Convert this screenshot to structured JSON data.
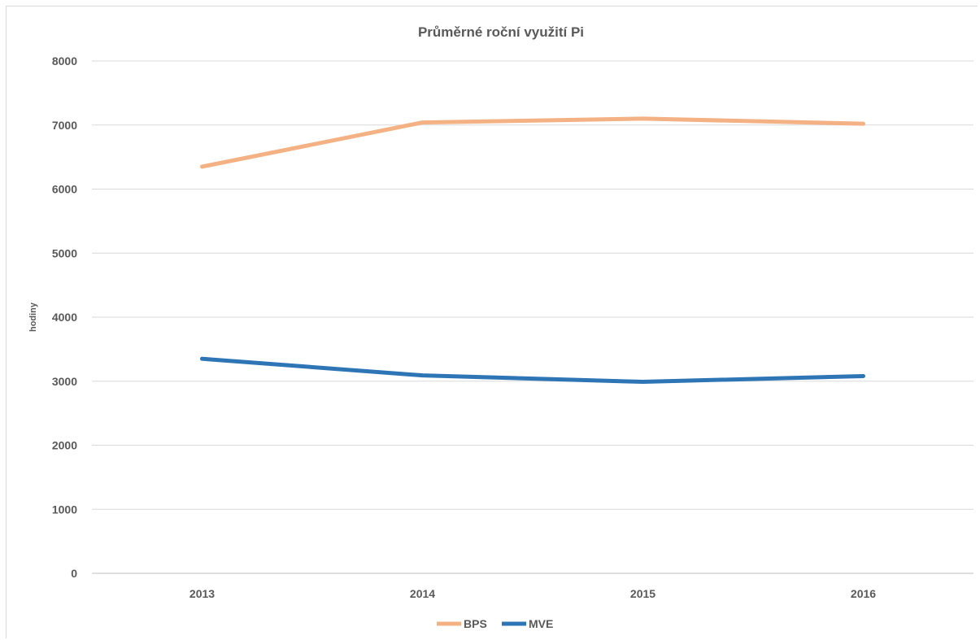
{
  "chart_data": {
    "type": "line",
    "title": "Průměrné roční využití Pi",
    "xlabel": "",
    "ylabel": "hodiny",
    "categories": [
      "2013",
      "2014",
      "2015",
      "2016"
    ],
    "ylim": [
      0,
      8000
    ],
    "yticks": [
      0,
      1000,
      2000,
      3000,
      4000,
      5000,
      6000,
      7000,
      8000
    ],
    "grid": true,
    "legend_position": "bottom",
    "series": [
      {
        "name": "BPS",
        "color": "#f4b183",
        "values": [
          6350,
          7040,
          7100,
          7020
        ]
      },
      {
        "name": "MVE",
        "color": "#2e75b6",
        "values": [
          3350,
          3090,
          2990,
          3080
        ]
      }
    ]
  }
}
